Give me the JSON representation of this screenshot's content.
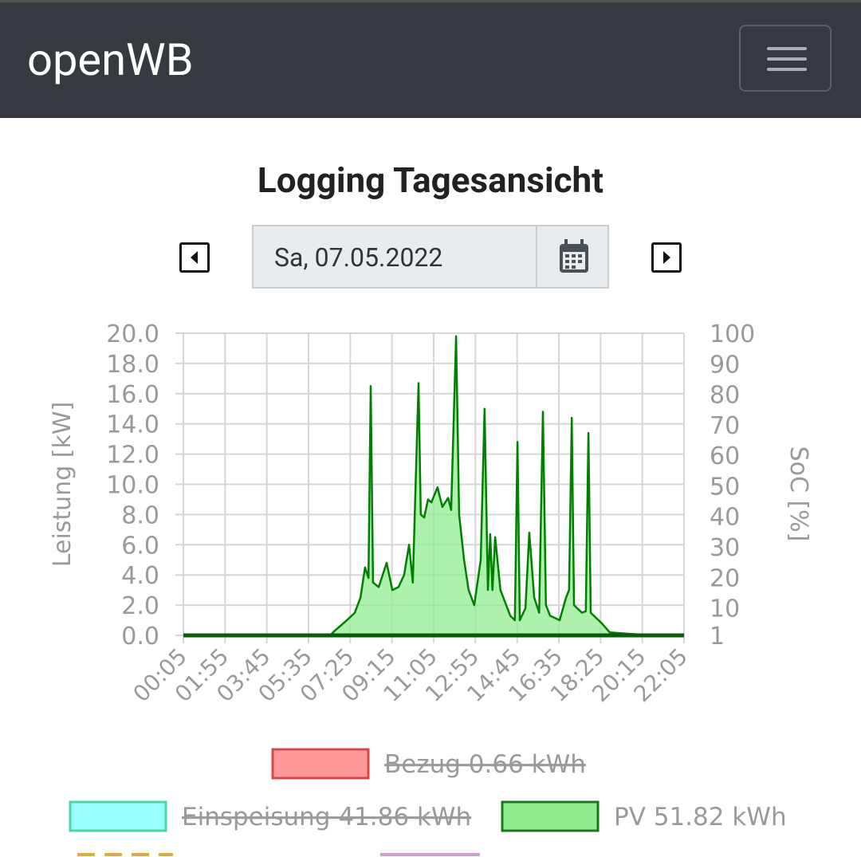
{
  "header": {
    "brand": "openWB"
  },
  "title": "Logging Tagesansicht",
  "date": "Sa, 07.05.2022",
  "chart_data": {
    "type": "area",
    "ylabel": "Leistung [kW]",
    "y2label": "SoC [%]",
    "xlim": [
      5,
      1325
    ],
    "xticks": [
      {
        "value": 5,
        "label": "00:05"
      },
      {
        "value": 115,
        "label": "01:55"
      },
      {
        "value": 225,
        "label": "03:45"
      },
      {
        "value": 335,
        "label": "05:35"
      },
      {
        "value": 445,
        "label": "07:25"
      },
      {
        "value": 555,
        "label": "09:15"
      },
      {
        "value": 665,
        "label": "11:05"
      },
      {
        "value": 775,
        "label": "12:55"
      },
      {
        "value": 885,
        "label": "14:45"
      },
      {
        "value": 995,
        "label": "16:35"
      },
      {
        "value": 1105,
        "label": "18:25"
      },
      {
        "value": 1215,
        "label": "20:15"
      },
      {
        "value": 1325,
        "label": "22:05"
      }
    ],
    "ylim": [
      0,
      20
    ],
    "yticks": [
      {
        "value": 0,
        "label": "0.0"
      },
      {
        "value": 2,
        "label": "2.0"
      },
      {
        "value": 4,
        "label": "4.0"
      },
      {
        "value": 6,
        "label": "6.0"
      },
      {
        "value": 8,
        "label": "8.0"
      },
      {
        "value": 10,
        "label": "10.0"
      },
      {
        "value": 12,
        "label": "12.0"
      },
      {
        "value": 14,
        "label": "14.0"
      },
      {
        "value": 16,
        "label": "16.0"
      },
      {
        "value": 18,
        "label": "18.0"
      },
      {
        "value": 20,
        "label": "20.0"
      }
    ],
    "y2lim": [
      1,
      100
    ],
    "y2ticks": [
      1,
      10,
      20,
      30,
      40,
      50,
      60,
      70,
      80,
      90,
      100
    ],
    "grid": true,
    "series": [
      {
        "name": "PV 51.82 kWh",
        "color": "#008000",
        "fill": "#90ee90",
        "x": [
          5,
          392,
          404,
          436,
          457,
          472,
          484,
          493,
          499,
          505,
          520,
          541,
          556,
          572,
          587,
          600,
          610,
          625,
          631,
          640,
          650,
          659,
          675,
          688,
          703,
          711,
          724,
          732,
          745,
          757,
          772,
          789,
          799,
          808,
          814,
          820,
          827,
          841,
          867,
          879,
          886,
          892,
          907,
          917,
          930,
          943,
          953,
          961,
          972,
          997,
          1014,
          1022,
          1029,
          1035,
          1056,
          1066,
          1073,
          1079,
          1108,
          1129,
          1182,
          1245,
          1325
        ],
        "values": [
          0,
          0,
          0.3,
          1.0,
          1.5,
          2.5,
          4.5,
          3.8,
          16.5,
          3.5,
          3.2,
          4.8,
          3.0,
          3.2,
          4.0,
          6.0,
          3.5,
          16.7,
          8.0,
          7.8,
          9.0,
          8.8,
          9.8,
          8.5,
          9.1,
          8.3,
          19.8,
          8.0,
          5.0,
          3.0,
          2.0,
          5.0,
          15.0,
          3.0,
          6.7,
          3.0,
          6.5,
          3.0,
          1.3,
          1.0,
          12.8,
          1.0,
          1.8,
          6.8,
          2.5,
          1.5,
          14.8,
          2.0,
          1.3,
          1.0,
          2.5,
          3.0,
          14.4,
          2.0,
          1.5,
          1.6,
          13.4,
          1.5,
          0.8,
          0.2,
          0.1,
          0,
          0
        ]
      }
    ],
    "legend": [
      {
        "label": "Bezug 0.66 kWh",
        "color": "#ff9999",
        "hidden": true
      },
      {
        "label": "Einspeisung 41.86 kWh",
        "color": "#99ffff",
        "hidden": true
      },
      {
        "label": "PV 51.82 kWh",
        "color": "#90ee90",
        "hidden": false
      }
    ]
  }
}
